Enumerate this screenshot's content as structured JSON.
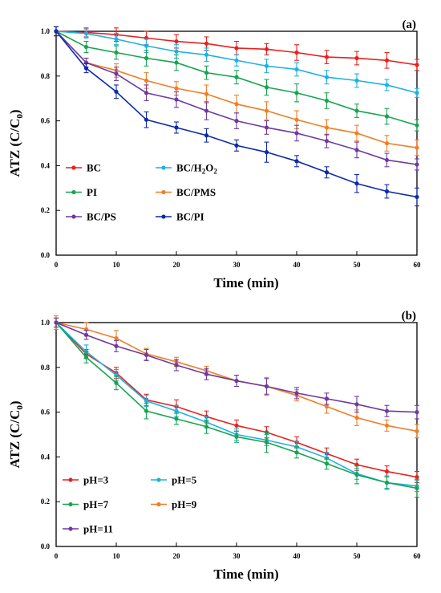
{
  "chart_data": [
    {
      "type": "line",
      "panel_label": "(a)",
      "xlabel": "Time (min)",
      "ylabel_main": "ATZ (C/C",
      "ylabel_sub": "0",
      "ylabel_close": ")",
      "x": [
        0,
        5,
        10,
        15,
        20,
        25,
        30,
        35,
        40,
        45,
        50,
        55,
        60
      ],
      "xlim": [
        0,
        60
      ],
      "ylim": [
        0.0,
        1.0
      ],
      "xticks": [
        "0",
        "10",
        "20",
        "30",
        "40",
        "50",
        "60"
      ],
      "xtick_values": [
        0,
        10,
        20,
        30,
        40,
        50,
        60
      ],
      "yticks": [
        "0.0",
        "0.2",
        "0.4",
        "0.6",
        "0.8",
        "1.0"
      ],
      "ytick_values": [
        0,
        0.2,
        0.4,
        0.6,
        0.8,
        1.0
      ],
      "error_bars": true,
      "grid": false,
      "legend_placement": "bottom-left",
      "series": [
        {
          "name": "BC",
          "name_main": "BC",
          "name_sub1": "",
          "name_mid": "",
          "name_sub2": "",
          "color": "#e8211e",
          "values": [
            1.0,
            0.995,
            0.985,
            0.97,
            0.955,
            0.945,
            0.925,
            0.92,
            0.905,
            0.885,
            0.88,
            0.87,
            0.85
          ],
          "errors": [
            0.02,
            0.02,
            0.03,
            0.03,
            0.03,
            0.03,
            0.03,
            0.025,
            0.035,
            0.03,
            0.03,
            0.035,
            0.025
          ]
        },
        {
          "name": "BC/H2O2",
          "name_main": "BC/H",
          "name_sub1": "2",
          "name_mid": "O",
          "name_sub2": "2",
          "color": "#1cb1e6",
          "values": [
            1.0,
            0.99,
            0.965,
            0.935,
            0.91,
            0.895,
            0.87,
            0.845,
            0.83,
            0.795,
            0.78,
            0.76,
            0.725
          ],
          "errors": [
            0.02,
            0.02,
            0.025,
            0.03,
            0.03,
            0.03,
            0.025,
            0.03,
            0.03,
            0.03,
            0.03,
            0.025,
            0.02
          ]
        },
        {
          "name": "PI",
          "name_main": "PI",
          "name_sub1": "",
          "name_mid": "",
          "name_sub2": "",
          "color": "#17a450",
          "values": [
            1.0,
            0.93,
            0.905,
            0.88,
            0.86,
            0.815,
            0.795,
            0.75,
            0.725,
            0.69,
            0.645,
            0.62,
            0.58
          ],
          "errors": [
            0.02,
            0.025,
            0.03,
            0.035,
            0.035,
            0.03,
            0.03,
            0.035,
            0.04,
            0.035,
            0.03,
            0.035,
            0.025
          ]
        },
        {
          "name": "BC/PMS",
          "name_main": "BC/PMS",
          "name_sub1": "",
          "name_mid": "",
          "name_sub2": "",
          "color": "#f07e27",
          "values": [
            1.0,
            0.86,
            0.825,
            0.78,
            0.745,
            0.72,
            0.675,
            0.645,
            0.605,
            0.57,
            0.545,
            0.5,
            0.48
          ],
          "errors": [
            0.02,
            0.02,
            0.03,
            0.035,
            0.03,
            0.04,
            0.04,
            0.04,
            0.04,
            0.035,
            0.035,
            0.035,
            0.035
          ]
        },
        {
          "name": "BC/PS",
          "name_main": "BC/PS",
          "name_sub1": "",
          "name_mid": "",
          "name_sub2": "",
          "color": "#6e3aa0",
          "values": [
            1.0,
            0.86,
            0.81,
            0.725,
            0.695,
            0.645,
            0.6,
            0.57,
            0.545,
            0.51,
            0.47,
            0.425,
            0.405
          ],
          "errors": [
            0.02,
            0.02,
            0.03,
            0.035,
            0.035,
            0.04,
            0.035,
            0.03,
            0.035,
            0.03,
            0.035,
            0.03,
            0.025
          ]
        },
        {
          "name": "BC/PI",
          "name_main": "BC/PI",
          "name_sub1": "",
          "name_mid": "",
          "name_sub2": "",
          "color": "#0d2aa8",
          "values": [
            1.0,
            0.835,
            0.73,
            0.605,
            0.57,
            0.535,
            0.49,
            0.46,
            0.42,
            0.37,
            0.32,
            0.285,
            0.26
          ],
          "errors": [
            0.02,
            0.02,
            0.03,
            0.035,
            0.025,
            0.03,
            0.025,
            0.045,
            0.025,
            0.025,
            0.04,
            0.03,
            0.04
          ]
        }
      ]
    },
    {
      "type": "line",
      "panel_label": "(b)",
      "xlabel": "Time (min)",
      "ylabel_main": "ATZ (C/C",
      "ylabel_sub": "0",
      "ylabel_close": ")",
      "x": [
        0,
        5,
        10,
        15,
        20,
        25,
        30,
        35,
        40,
        45,
        50,
        55,
        60
      ],
      "xlim": [
        0,
        60
      ],
      "ylim": [
        0.0,
        1.0
      ],
      "xticks": [
        "0",
        "10",
        "20",
        "30",
        "40",
        "50",
        "60"
      ],
      "xtick_values": [
        0,
        10,
        20,
        30,
        40,
        50,
        60
      ],
      "yticks": [
        "0.0",
        "0.2",
        "0.4",
        "0.6",
        "0.8",
        "1.0"
      ],
      "ytick_values": [
        0,
        0.2,
        0.4,
        0.6,
        0.8,
        1.0
      ],
      "error_bars": true,
      "grid": false,
      "legend_placement": "bottom-left",
      "series": [
        {
          "name": "pH=3",
          "name_main": "pH=3",
          "name_sub1": "",
          "name_mid": "",
          "name_sub2": "",
          "color": "#e8211e",
          "values": [
            1.0,
            0.86,
            0.775,
            0.655,
            0.625,
            0.58,
            0.54,
            0.51,
            0.465,
            0.415,
            0.365,
            0.335,
            0.31
          ],
          "errors": [
            0.02,
            0.02,
            0.025,
            0.025,
            0.03,
            0.025,
            0.025,
            0.025,
            0.025,
            0.025,
            0.025,
            0.025,
            0.025
          ]
        },
        {
          "name": "pH=5",
          "name_main": "pH=5",
          "name_sub1": "",
          "name_mid": "",
          "name_sub2": "",
          "color": "#1cb1e6",
          "values": [
            1.0,
            0.87,
            0.765,
            0.65,
            0.605,
            0.555,
            0.5,
            0.475,
            0.445,
            0.395,
            0.325,
            0.285,
            0.27
          ],
          "errors": [
            0.02,
            0.03,
            0.025,
            0.025,
            0.025,
            0.025,
            0.025,
            0.025,
            0.025,
            0.025,
            0.025,
            0.025,
            0.025
          ]
        },
        {
          "name": "pH=7",
          "name_main": "pH=7",
          "name_sub1": "",
          "name_mid": "",
          "name_sub2": "",
          "color": "#17a450",
          "values": [
            1.0,
            0.845,
            0.73,
            0.605,
            0.57,
            0.535,
            0.49,
            0.465,
            0.42,
            0.37,
            0.32,
            0.285,
            0.26
          ],
          "errors": [
            0.02,
            0.025,
            0.03,
            0.035,
            0.025,
            0.03,
            0.025,
            0.045,
            0.025,
            0.025,
            0.04,
            0.03,
            0.04
          ]
        },
        {
          "name": "pH=9",
          "name_main": "pH=9",
          "name_sub1": "",
          "name_mid": "",
          "name_sub2": "",
          "color": "#f07e27",
          "values": [
            1.0,
            0.97,
            0.93,
            0.86,
            0.825,
            0.785,
            0.74,
            0.715,
            0.675,
            0.625,
            0.575,
            0.54,
            0.515
          ],
          "errors": [
            0.03,
            0.03,
            0.035,
            0.025,
            0.02,
            0.02,
            0.025,
            0.04,
            0.025,
            0.03,
            0.035,
            0.025,
            0.03
          ]
        },
        {
          "name": "pH=11",
          "name_main": "pH=11",
          "name_sub1": "",
          "name_mid": "",
          "name_sub2": "",
          "color": "#6e3aa0",
          "values": [
            1.0,
            0.945,
            0.895,
            0.855,
            0.81,
            0.77,
            0.74,
            0.715,
            0.685,
            0.66,
            0.635,
            0.605,
            0.6
          ],
          "errors": [
            0.02,
            0.02,
            0.025,
            0.025,
            0.025,
            0.025,
            0.025,
            0.035,
            0.025,
            0.025,
            0.035,
            0.025,
            0.03
          ]
        }
      ]
    }
  ]
}
